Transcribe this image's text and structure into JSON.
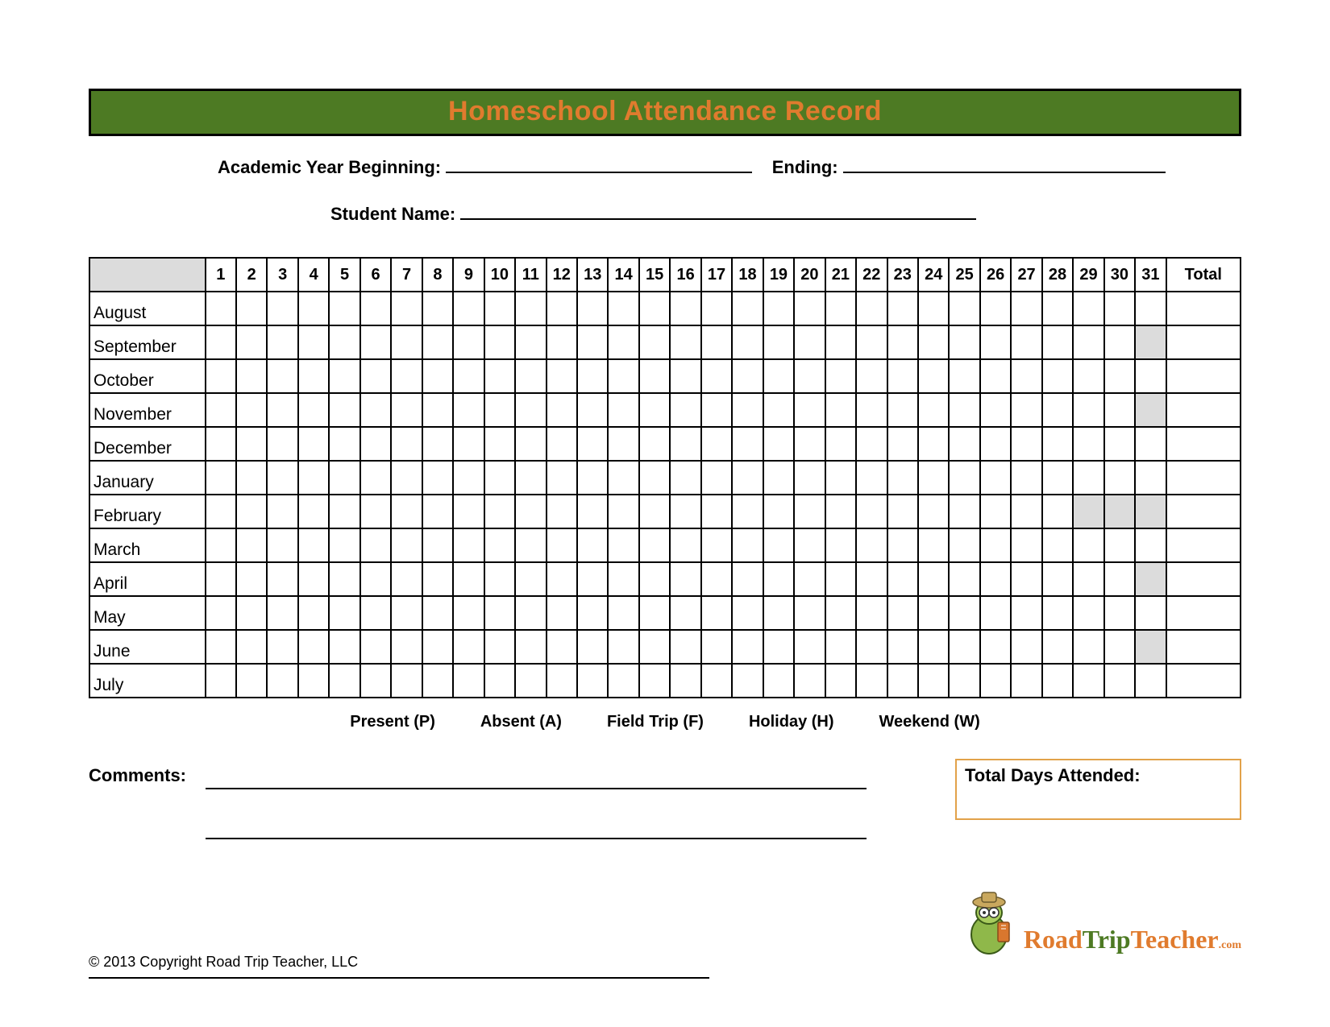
{
  "title": "Homeschool Attendance Record",
  "fields": {
    "year_begin_label": "Academic Year Beginning:",
    "year_end_label": "Ending:",
    "student_label": "Student Name:"
  },
  "table": {
    "day_numbers": [
      "1",
      "2",
      "3",
      "4",
      "5",
      "6",
      "7",
      "8",
      "9",
      "10",
      "11",
      "12",
      "13",
      "14",
      "15",
      "16",
      "17",
      "18",
      "19",
      "20",
      "21",
      "22",
      "23",
      "24",
      "25",
      "26",
      "27",
      "28",
      "29",
      "30",
      "31"
    ],
    "total_header": "Total",
    "months": [
      {
        "name": "August",
        "shaded_days": []
      },
      {
        "name": "September",
        "shaded_days": [
          31
        ]
      },
      {
        "name": "October",
        "shaded_days": []
      },
      {
        "name": "November",
        "shaded_days": [
          31
        ]
      },
      {
        "name": "December",
        "shaded_days": []
      },
      {
        "name": "January",
        "shaded_days": []
      },
      {
        "name": "February",
        "shaded_days": [
          29,
          30,
          31
        ]
      },
      {
        "name": "March",
        "shaded_days": []
      },
      {
        "name": "April",
        "shaded_days": [
          31
        ]
      },
      {
        "name": "May",
        "shaded_days": []
      },
      {
        "name": "June",
        "shaded_days": [
          31
        ]
      },
      {
        "name": "July",
        "shaded_days": []
      }
    ]
  },
  "legend": {
    "items": [
      "Present (P)",
      "Absent (A)",
      "Field Trip (F)",
      "Holiday (H)",
      "Weekend (W)"
    ]
  },
  "comments_label": "Comments:",
  "total_days_label": "Total Days Attended:",
  "logo": {
    "part1": "Road",
    "part2": "Trip",
    "part3": "Teacher",
    "suffix": ".com"
  },
  "copyright": "© 2013 Copyright Road Trip Teacher, LLC",
  "colors": {
    "header_bg": "#4d7a23",
    "header_text": "#e07b2e",
    "border": "#000000",
    "shaded_cell": "#dcdcdc",
    "total_box_border": "#e2a24a"
  }
}
